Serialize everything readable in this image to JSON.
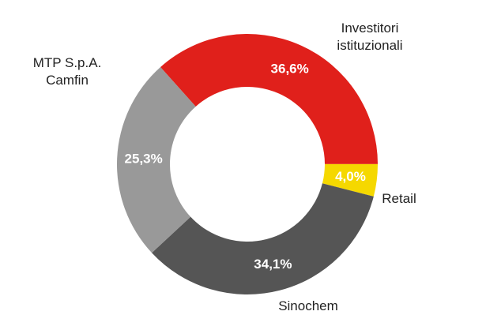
{
  "chart_data": {
    "type": "donut",
    "categories": [
      "Investitori istituzionali",
      "Retail",
      "Sinochem",
      "MTP S.p.A.\nCamfin"
    ],
    "values": [
      36.6,
      4.0,
      34.1,
      25.3
    ],
    "value_labels": [
      "36,6%",
      "4,0%",
      "34,1%",
      "25,3%"
    ],
    "colors": [
      "#e0201b",
      "#f5d800",
      "#555555",
      "#999999"
    ]
  }
}
